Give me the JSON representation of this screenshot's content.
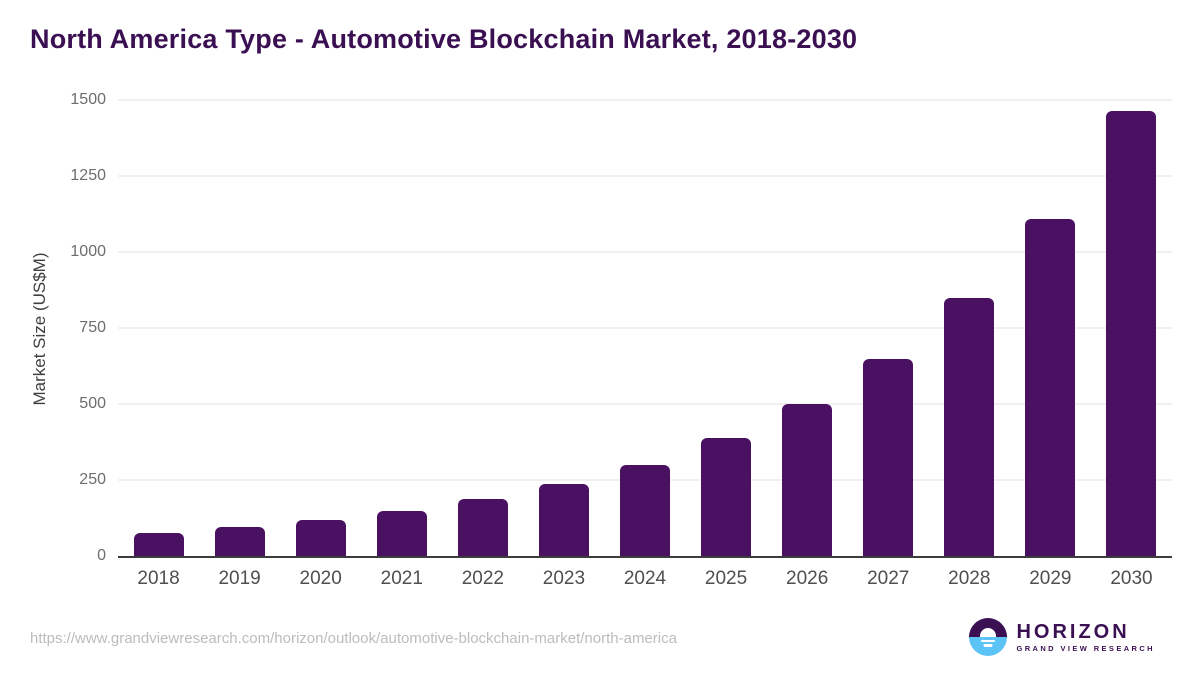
{
  "chart_data": {
    "type": "bar",
    "title": "North America Type - Automotive Blockchain Market, 2018-2030",
    "categories": [
      "2018",
      "2019",
      "2020",
      "2021",
      "2022",
      "2023",
      "2024",
      "2025",
      "2026",
      "2027",
      "2028",
      "2029",
      "2030"
    ],
    "values": [
      75,
      95,
      120,
      149,
      189,
      238,
      301,
      388,
      500,
      648,
      849,
      1110,
      1464
    ],
    "xlabel": "",
    "ylabel": "Market Size (US$M)",
    "ylim": [
      0,
      1500
    ],
    "yticks": [
      0,
      250,
      500,
      750,
      1000,
      1250,
      1500
    ],
    "grid": true,
    "legend": "none",
    "bar_color": "#4a1061"
  },
  "footer": {
    "source_url": "https://www.grandviewresearch.com/horizon/outlook/automotive-blockchain-market/north-america",
    "logo": {
      "wordmark": "HORIZON",
      "subtitle": "GRAND VIEW RESEARCH"
    }
  },
  "colors": {
    "title_purple": "#3b1053",
    "bar_purple": "#4a1061",
    "logo_blue": "#5bc3f5",
    "axis_line": "#3c3c3c",
    "gridline": "#f0f0f0",
    "tick_gray": "#6d6d6d",
    "url_gray": "#bcbcbc"
  }
}
